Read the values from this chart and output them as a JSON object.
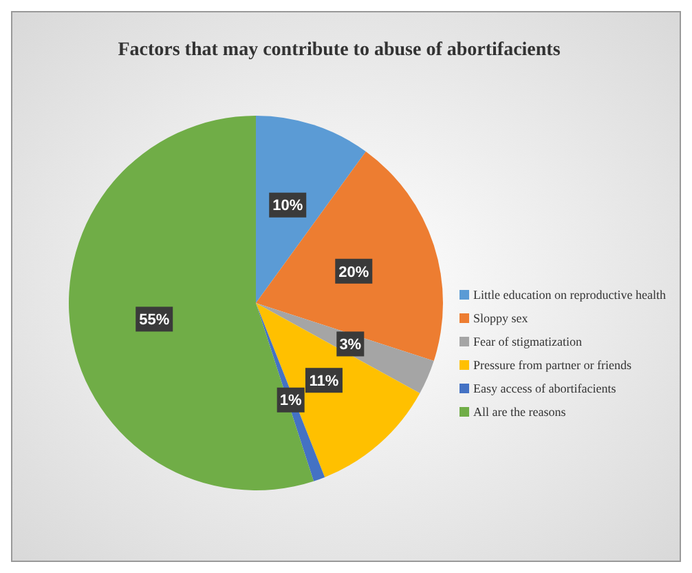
{
  "chart_data": {
    "type": "pie",
    "title": "Factors that may contribute to abuse of abortifacients",
    "categories": [
      "Little education on reproductive health",
      "Sloppy sex",
      "Fear of stigmatization",
      "Pressure from partner or friends",
      "Easy access of abortifacients",
      "All are the reasons"
    ],
    "values": [
      10,
      20,
      3,
      11,
      1,
      55
    ],
    "colors": [
      "#5b9bd5",
      "#ed7d31",
      "#a5a5a5",
      "#ffc000",
      "#4472c4",
      "#70ad47"
    ],
    "value_labels": [
      "10%",
      "20%",
      "3%",
      "11%",
      "1%",
      "55%"
    ],
    "legend": "right"
  }
}
